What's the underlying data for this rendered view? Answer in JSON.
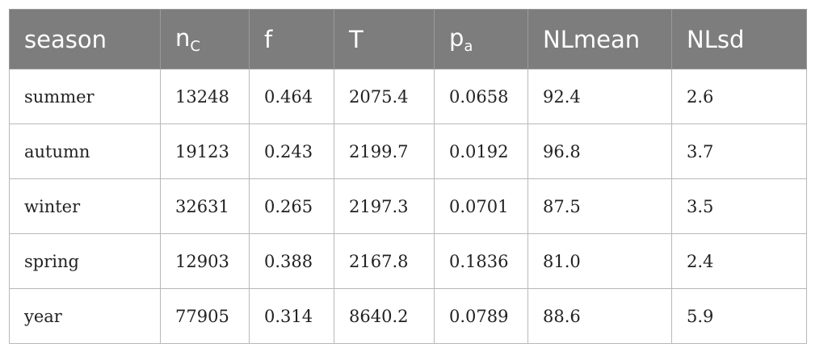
{
  "columns": [
    {
      "base": "season",
      "sub": ""
    },
    {
      "base": "n",
      "sub": "C"
    },
    {
      "base": "f",
      "sub": ""
    },
    {
      "base": "T",
      "sub": ""
    },
    {
      "base": "p",
      "sub": "a"
    },
    {
      "base": "NLmean",
      "sub": ""
    },
    {
      "base": "NLsd",
      "sub": ""
    }
  ],
  "rows": [
    [
      "summer",
      "13248",
      "0.464",
      "2075.4",
      "0.0658",
      "92.4",
      "2.6"
    ],
    [
      "autumn",
      "19123",
      "0.243",
      "2199.7",
      "0.0192",
      "96.8",
      "3.7"
    ],
    [
      "winter",
      "32631",
      "0.265",
      "2197.3",
      "0.0701",
      "87.5",
      "3.5"
    ],
    [
      "spring",
      "12903",
      "0.388",
      "2167.8",
      "0.1836",
      "81.0",
      "2.4"
    ],
    [
      "year",
      "77905",
      "0.314",
      "8640.2",
      "0.0789",
      "88.6",
      "5.9"
    ]
  ]
}
